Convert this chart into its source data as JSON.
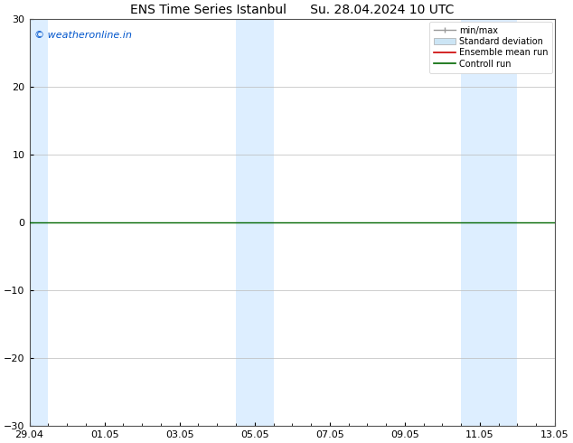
{
  "title": "ENS Time Series Istanbul      Su. 28.04.2024 10 UTC",
  "watermark": "© weatheronline.in",
  "watermark_color": "#0055cc",
  "ylim": [
    -30,
    30
  ],
  "yticks": [
    -30,
    -20,
    -10,
    0,
    10,
    20,
    30
  ],
  "xlim_start": 0,
  "xlim_end": 14,
  "xtick_labels": [
    "29.04",
    "01.05",
    "03.05",
    "05.05",
    "07.05",
    "09.05",
    "11.05",
    "13.05"
  ],
  "xtick_positions": [
    0,
    2,
    4,
    6,
    8,
    10,
    12,
    14
  ],
  "shaded_bands": [
    {
      "x_start": 0.0,
      "x_end": 0.5,
      "color": "#ddeeff"
    },
    {
      "x_start": 5.5,
      "x_end": 6.5,
      "color": "#ddeeff"
    },
    {
      "x_start": 11.5,
      "x_end": 13.0,
      "color": "#ddeeff"
    }
  ],
  "hline_y": 0,
  "hline_color": "#006600",
  "hline_linewidth": 1.0,
  "background_color": "#ffffff",
  "plot_bg_color": "#ffffff",
  "grid_color": "#bbbbbb",
  "font_family": "DejaVu Sans",
  "title_fontsize": 10,
  "tick_fontsize": 8,
  "legend_fontsize": 7,
  "watermark_fontsize": 8
}
